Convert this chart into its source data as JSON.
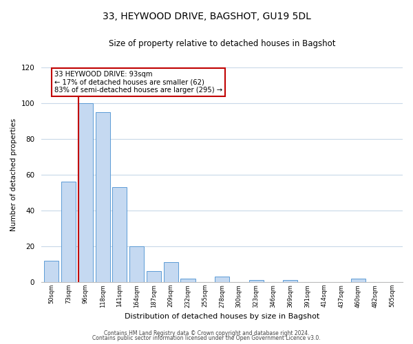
{
  "title": "33, HEYWOOD DRIVE, BAGSHOT, GU19 5DL",
  "subtitle": "Size of property relative to detached houses in Bagshot",
  "xlabel": "Distribution of detached houses by size in Bagshot",
  "ylabel": "Number of detached properties",
  "bin_labels": [
    "50sqm",
    "73sqm",
    "96sqm",
    "118sqm",
    "141sqm",
    "164sqm",
    "187sqm",
    "209sqm",
    "232sqm",
    "255sqm",
    "278sqm",
    "300sqm",
    "323sqm",
    "346sqm",
    "369sqm",
    "391sqm",
    "414sqm",
    "437sqm",
    "460sqm",
    "482sqm",
    "505sqm"
  ],
  "bar_heights": [
    12,
    56,
    100,
    95,
    53,
    20,
    6,
    11,
    2,
    0,
    3,
    0,
    1,
    0,
    1,
    0,
    0,
    0,
    2,
    0,
    0
  ],
  "bar_color": "#c5d9f1",
  "bar_edge_color": "#5b9bd5",
  "highlight_bar_index": 2,
  "highlight_line_color": "#c00000",
  "annotation_line1": "33 HEYWOOD DRIVE: 93sqm",
  "annotation_line2": "← 17% of detached houses are smaller (62)",
  "annotation_line3": "83% of semi-detached houses are larger (295) →",
  "annotation_box_color": "#c00000",
  "annotation_box_fill": "#ffffff",
  "ylim": [
    0,
    120
  ],
  "yticks": [
    0,
    20,
    40,
    60,
    80,
    100,
    120
  ],
  "footer_line1": "Contains HM Land Registry data © Crown copyright and database right 2024.",
  "footer_line2": "Contains public sector information licensed under the Open Government Licence v3.0.",
  "background_color": "#ffffff",
  "grid_color": "#c8d8e8"
}
